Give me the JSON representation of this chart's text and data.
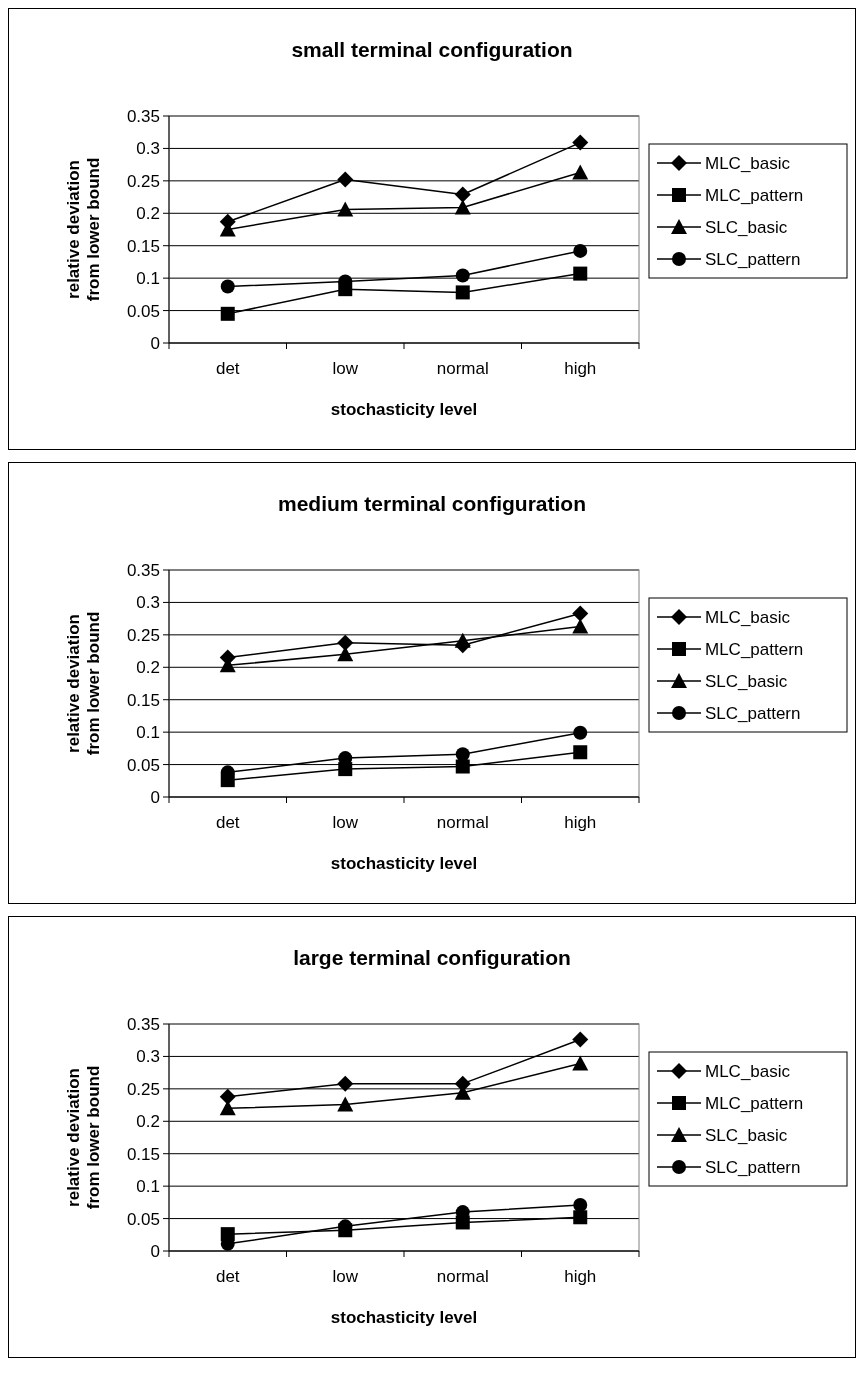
{
  "chart_data": [
    {
      "type": "line",
      "title": "small terminal configuration",
      "xlabel": "stochasticity level",
      "ylabel": "relative deviation\nfrom lower bound",
      "categories": [
        "det",
        "low",
        "normal",
        "high"
      ],
      "ylim": [
        0,
        0.35
      ],
      "yticks": [
        0,
        0.05,
        0.1,
        0.15,
        0.2,
        0.25,
        0.3,
        0.35
      ],
      "grid": "y",
      "legend": "right",
      "series": [
        {
          "name": "MLC_basic",
          "color": "#000000",
          "marker": "diamond",
          "values": [
            0.187,
            0.252,
            0.229,
            0.309
          ]
        },
        {
          "name": "MLC_pattern",
          "color": "#000000",
          "marker": "square",
          "values": [
            0.045,
            0.083,
            0.078,
            0.107
          ]
        },
        {
          "name": "SLC_basic",
          "color": "#000000",
          "marker": "triangle",
          "values": [
            0.175,
            0.206,
            0.209,
            0.263
          ]
        },
        {
          "name": "SLC_pattern",
          "color": "#000000",
          "marker": "circle",
          "values": [
            0.087,
            0.095,
            0.104,
            0.142
          ]
        }
      ]
    },
    {
      "type": "line",
      "title": "medium terminal configuration",
      "xlabel": "stochasticity level",
      "ylabel": "relative deviation\nfrom lower bound",
      "categories": [
        "det",
        "low",
        "normal",
        "high"
      ],
      "ylim": [
        0,
        0.35
      ],
      "yticks": [
        0,
        0.05,
        0.1,
        0.15,
        0.2,
        0.25,
        0.3,
        0.35
      ],
      "grid": "y",
      "legend": "right",
      "series": [
        {
          "name": "MLC_basic",
          "color": "#000000",
          "marker": "diamond",
          "values": [
            0.215,
            0.238,
            0.234,
            0.283
          ]
        },
        {
          "name": "MLC_pattern",
          "color": "#000000",
          "marker": "square",
          "values": [
            0.026,
            0.043,
            0.047,
            0.069
          ]
        },
        {
          "name": "SLC_basic",
          "color": "#000000",
          "marker": "triangle",
          "values": [
            0.203,
            0.22,
            0.241,
            0.263
          ]
        },
        {
          "name": "SLC_pattern",
          "color": "#000000",
          "marker": "circle",
          "values": [
            0.038,
            0.06,
            0.066,
            0.099
          ]
        }
      ]
    },
    {
      "type": "line",
      "title": "large terminal configuration",
      "xlabel": "stochasticity level",
      "ylabel": "relative deviation\nfrom lower bound",
      "categories": [
        "det",
        "low",
        "normal",
        "high"
      ],
      "ylim": [
        0,
        0.35
      ],
      "yticks": [
        0,
        0.05,
        0.1,
        0.15,
        0.2,
        0.25,
        0.3,
        0.35
      ],
      "grid": "y",
      "legend": "right",
      "series": [
        {
          "name": "MLC_basic",
          "color": "#000000",
          "marker": "diamond",
          "values": [
            0.238,
            0.258,
            0.258,
            0.326
          ]
        },
        {
          "name": "MLC_pattern",
          "color": "#000000",
          "marker": "square",
          "values": [
            0.026,
            0.032,
            0.044,
            0.052
          ]
        },
        {
          "name": "SLC_basic",
          "color": "#000000",
          "marker": "triangle",
          "values": [
            0.22,
            0.226,
            0.244,
            0.289
          ]
        },
        {
          "name": "SLC_pattern",
          "color": "#000000",
          "marker": "circle",
          "values": [
            0.011,
            0.038,
            0.06,
            0.071
          ]
        }
      ]
    }
  ]
}
